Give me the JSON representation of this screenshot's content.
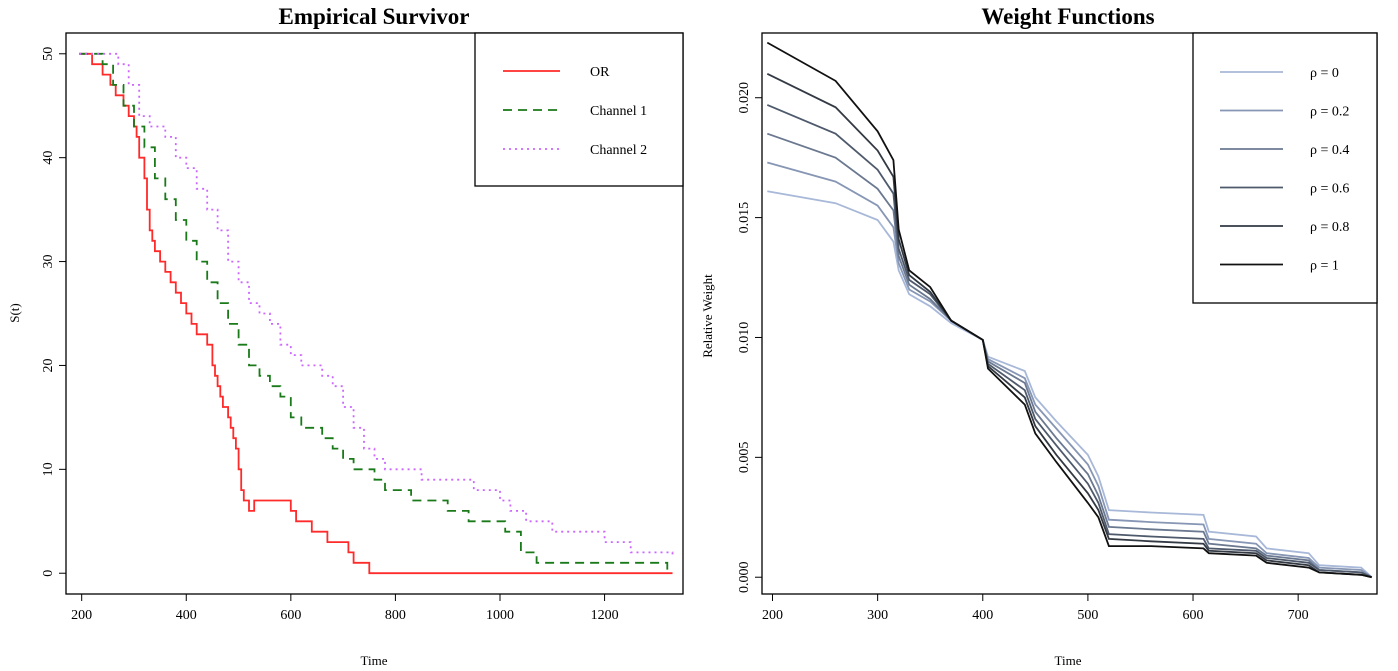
{
  "chart_data": [
    {
      "type": "line",
      "title": "Empirical Survivor",
      "xlabel": "Time",
      "ylabel": "S(t)",
      "xlim": [
        170,
        1350
      ],
      "ylim": [
        -2,
        52
      ],
      "x_ticks": [
        200,
        400,
        600,
        800,
        1000,
        1200
      ],
      "y_ticks": [
        0,
        10,
        20,
        30,
        40,
        50
      ],
      "legend_position": "top-right",
      "step": true,
      "series": [
        {
          "name": "OR",
          "color": "#ff2a2a",
          "dash": "solid",
          "x": [
            195,
            220,
            240,
            255,
            265,
            280,
            290,
            300,
            305,
            310,
            320,
            325,
            330,
            335,
            340,
            350,
            360,
            370,
            380,
            390,
            400,
            410,
            420,
            440,
            450,
            455,
            460,
            465,
            470,
            480,
            485,
            490,
            495,
            500,
            505,
            510,
            520,
            530,
            600,
            610,
            620,
            640,
            660,
            670,
            680,
            690,
            710,
            720,
            730,
            750,
            760,
            1330
          ],
          "y": [
            50,
            49,
            48,
            47,
            46,
            45,
            44,
            43,
            42,
            40,
            38,
            35,
            33,
            32,
            31,
            30,
            29,
            28,
            27,
            26,
            25,
            24,
            23,
            22,
            20,
            19,
            18,
            17,
            16,
            15,
            14,
            13,
            12,
            10,
            8,
            7,
            6,
            7,
            6,
            5,
            5,
            4,
            4,
            3,
            3,
            3,
            2,
            1,
            1,
            0,
            0,
            0
          ]
        },
        {
          "name": "Channel 1",
          "color": "#1a7a1a",
          "dash": "dashed",
          "x": [
            195,
            240,
            260,
            280,
            300,
            320,
            340,
            360,
            380,
            400,
            420,
            440,
            460,
            480,
            500,
            520,
            540,
            560,
            580,
            600,
            620,
            640,
            660,
            680,
            700,
            720,
            740,
            760,
            780,
            800,
            830,
            860,
            900,
            940,
            980,
            1010,
            1040,
            1060,
            1070,
            1200,
            1280,
            1320
          ],
          "y": [
            50,
            49,
            47,
            45,
            43,
            41,
            38,
            36,
            34,
            32,
            30,
            28,
            26,
            24,
            22,
            20,
            19,
            18,
            17,
            15,
            14,
            14,
            13,
            12,
            11,
            10,
            10,
            9,
            8,
            8,
            7,
            7,
            6,
            5,
            5,
            4,
            2,
            2,
            1,
            1,
            1,
            0
          ]
        },
        {
          "name": "Channel 2",
          "color": "#cc66ff",
          "dash": "dotted",
          "x": [
            195,
            270,
            290,
            310,
            330,
            360,
            380,
            400,
            420,
            440,
            460,
            480,
            500,
            520,
            540,
            560,
            580,
            600,
            620,
            640,
            660,
            680,
            700,
            720,
            740,
            760,
            780,
            800,
            850,
            900,
            950,
            1000,
            1020,
            1050,
            1100,
            1150,
            1200,
            1250,
            1300,
            1330
          ],
          "y": [
            50,
            49,
            47,
            44,
            43,
            42,
            40,
            39,
            37,
            35,
            33,
            30,
            28,
            26,
            25,
            24,
            22,
            21,
            20,
            20,
            19,
            18,
            16,
            14,
            12,
            11,
            10,
            10,
            9,
            9,
            8,
            7,
            6,
            5,
            4,
            4,
            3,
            2,
            2,
            1.5
          ]
        }
      ]
    },
    {
      "type": "line",
      "title": "Weight Functions",
      "xlabel": "Time",
      "ylabel": "Relative Weight",
      "xlim": [
        190,
        775
      ],
      "ylim": [
        -0.0007,
        0.0227
      ],
      "x_ticks": [
        200,
        300,
        400,
        500,
        600,
        700
      ],
      "y_ticks": [
        0.0,
        0.005,
        0.01,
        0.015,
        0.02
      ],
      "y_tick_labels": [
        "0.000",
        "0.005",
        "0.010",
        "0.015",
        "0.020"
      ],
      "legend_position": "top-right",
      "series": [
        {
          "name": "ρ = 0",
          "color": "#a8b8d8",
          "x": [
            195,
            260,
            300,
            315,
            320,
            330,
            350,
            370,
            400,
            405,
            440,
            450,
            470,
            500,
            510,
            520,
            560,
            610,
            615,
            660,
            670,
            710,
            720,
            760,
            770
          ],
          "y": [
            0.0161,
            0.0156,
            0.0149,
            0.014,
            0.0128,
            0.0118,
            0.0113,
            0.0106,
            0.0099,
            0.0092,
            0.0086,
            0.0075,
            0.0065,
            0.0051,
            0.0042,
            0.0028,
            0.0027,
            0.0026,
            0.0019,
            0.0017,
            0.0012,
            0.001,
            0.0005,
            0.0004,
            0.0
          ]
        },
        {
          "name": "ρ = 0.2",
          "color": "#8696b4",
          "x": [
            195,
            260,
            300,
            315,
            320,
            330,
            350,
            370,
            400,
            405,
            440,
            450,
            470,
            500,
            510,
            520,
            560,
            610,
            615,
            660,
            670,
            710,
            720,
            760,
            770
          ],
          "y": [
            0.0173,
            0.0165,
            0.0155,
            0.0146,
            0.0131,
            0.012,
            0.0115,
            0.0107,
            0.0099,
            0.0091,
            0.0083,
            0.0072,
            0.0062,
            0.0047,
            0.0038,
            0.0024,
            0.0023,
            0.0022,
            0.0016,
            0.0014,
            0.001,
            0.0008,
            0.0004,
            0.0003,
            0.0
          ]
        },
        {
          "name": "ρ = 0.4",
          "color": "#6a7890",
          "x": [
            195,
            260,
            300,
            315,
            320,
            330,
            350,
            370,
            400,
            405,
            440,
            450,
            470,
            500,
            510,
            520,
            560,
            610,
            615,
            660,
            670,
            710,
            720,
            760,
            770
          ],
          "y": [
            0.0185,
            0.0175,
            0.0162,
            0.0153,
            0.0134,
            0.0122,
            0.0116,
            0.0107,
            0.0099,
            0.009,
            0.0081,
            0.0069,
            0.0058,
            0.0043,
            0.0034,
            0.0021,
            0.002,
            0.0019,
            0.0014,
            0.0012,
            0.0009,
            0.0007,
            0.0003,
            0.0002,
            0.0
          ]
        },
        {
          "name": "ρ = 0.6",
          "color": "#4e5a6c",
          "x": [
            195,
            260,
            300,
            315,
            320,
            330,
            350,
            370,
            400,
            405,
            440,
            450,
            470,
            500,
            510,
            520,
            560,
            610,
            615,
            660,
            670,
            710,
            720,
            760,
            770
          ],
          "y": [
            0.0197,
            0.0185,
            0.017,
            0.016,
            0.0137,
            0.0124,
            0.0118,
            0.0107,
            0.0099,
            0.0089,
            0.0078,
            0.0066,
            0.0055,
            0.0039,
            0.0031,
            0.0018,
            0.0017,
            0.0016,
            0.0012,
            0.0011,
            0.0008,
            0.0006,
            0.0003,
            0.0002,
            0.0
          ]
        },
        {
          "name": "ρ = 0.8",
          "color": "#333a44",
          "x": [
            195,
            260,
            300,
            315,
            320,
            330,
            350,
            370,
            400,
            405,
            440,
            450,
            470,
            500,
            510,
            520,
            560,
            610,
            615,
            660,
            670,
            710,
            720,
            760,
            770
          ],
          "y": [
            0.021,
            0.0196,
            0.0178,
            0.0167,
            0.0141,
            0.0126,
            0.0119,
            0.0107,
            0.0099,
            0.0088,
            0.0075,
            0.0063,
            0.0051,
            0.0035,
            0.0028,
            0.0016,
            0.0015,
            0.0014,
            0.0011,
            0.001,
            0.0007,
            0.0005,
            0.0002,
            0.0001,
            0.0
          ]
        },
        {
          "name": "ρ = 1",
          "color": "#111111",
          "x": [
            195,
            260,
            300,
            315,
            320,
            330,
            350,
            370,
            400,
            405,
            440,
            450,
            470,
            500,
            510,
            520,
            560,
            610,
            615,
            660,
            670,
            710,
            720,
            760,
            770
          ],
          "y": [
            0.0223,
            0.0207,
            0.0186,
            0.0174,
            0.0145,
            0.0128,
            0.0121,
            0.0107,
            0.0099,
            0.0087,
            0.0072,
            0.006,
            0.0048,
            0.0031,
            0.0025,
            0.0013,
            0.0013,
            0.0012,
            0.001,
            0.0009,
            0.0006,
            0.0004,
            0.0002,
            0.0001,
            0.0
          ]
        }
      ]
    }
  ]
}
